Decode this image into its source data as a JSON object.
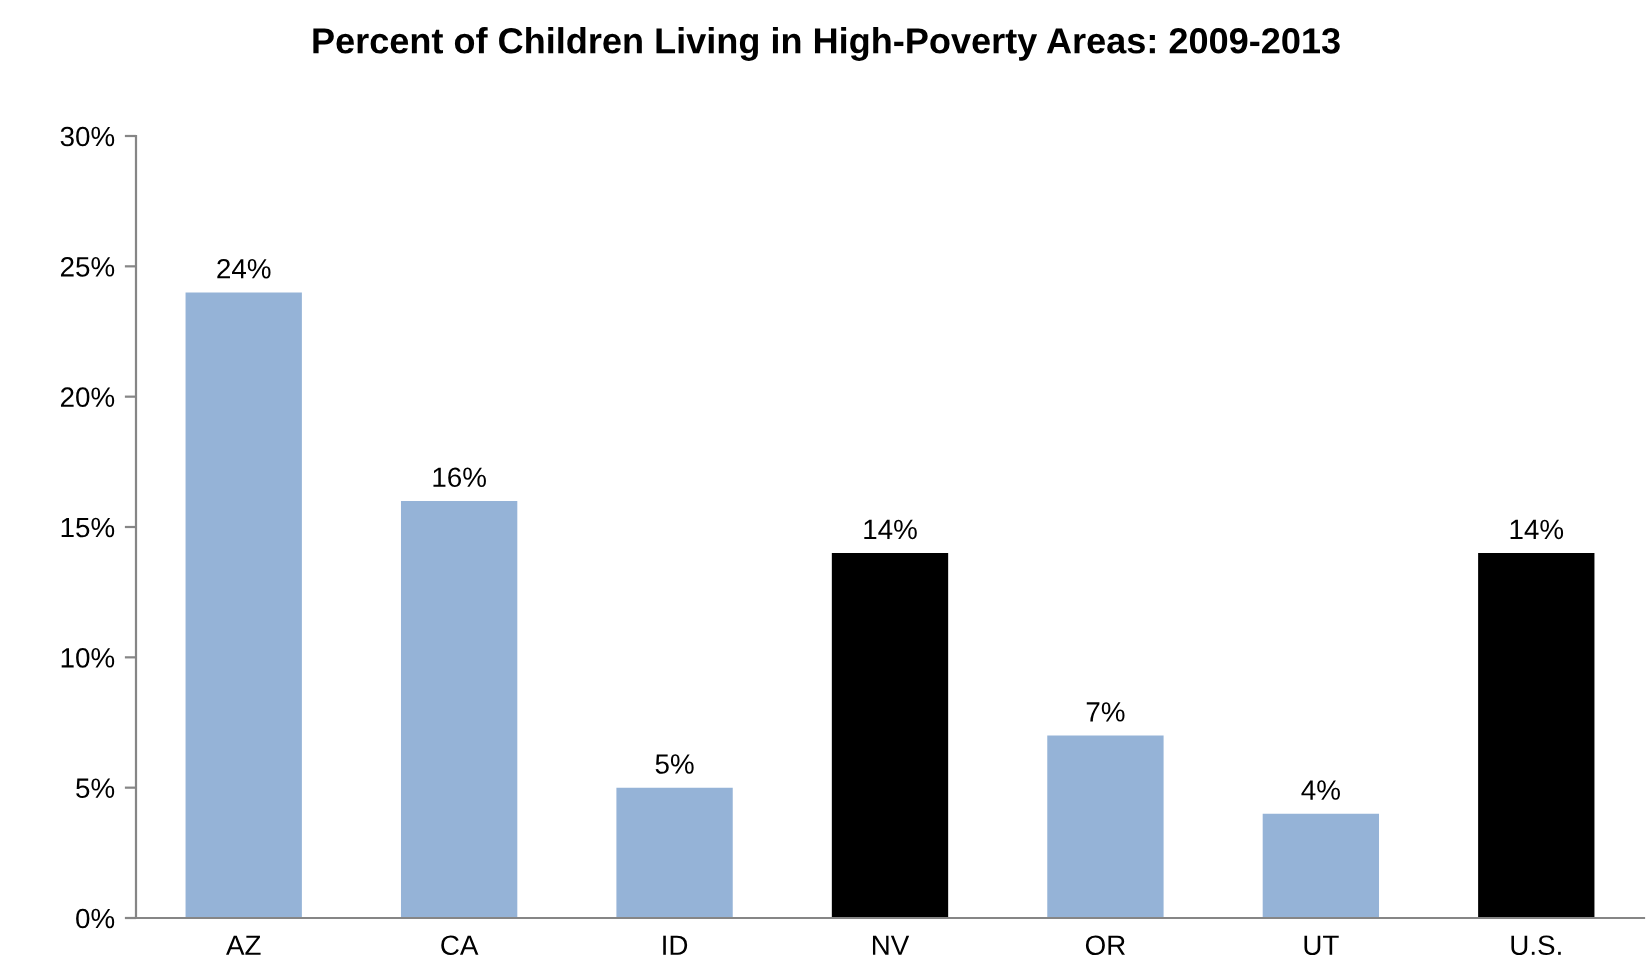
{
  "chart_data": {
    "type": "bar",
    "title": "Percent of Children Living in High-Poverty Areas: 2009-2013",
    "categories": [
      "AZ",
      "CA",
      "ID",
      "NV",
      "OR",
      "UT",
      "U.S."
    ],
    "values": [
      24,
      16,
      5,
      14,
      7,
      4,
      14
    ],
    "colors": [
      "#95b3d7",
      "#95b3d7",
      "#95b3d7",
      "#000000",
      "#95b3d7",
      "#95b3d7",
      "#000000"
    ],
    "value_labels": [
      "24%",
      "16%",
      "5%",
      "14%",
      "7%",
      "4%",
      "14%"
    ],
    "ylim": [
      0,
      30
    ],
    "yticks": [
      {
        "value": 0,
        "label": "0%"
      },
      {
        "value": 5,
        "label": "5%"
      },
      {
        "value": 10,
        "label": "10%"
      },
      {
        "value": 15,
        "label": "15%"
      },
      {
        "value": 20,
        "label": "20%"
      },
      {
        "value": 25,
        "label": "25%"
      },
      {
        "value": 30,
        "label": "30%"
      }
    ],
    "grid": false
  }
}
